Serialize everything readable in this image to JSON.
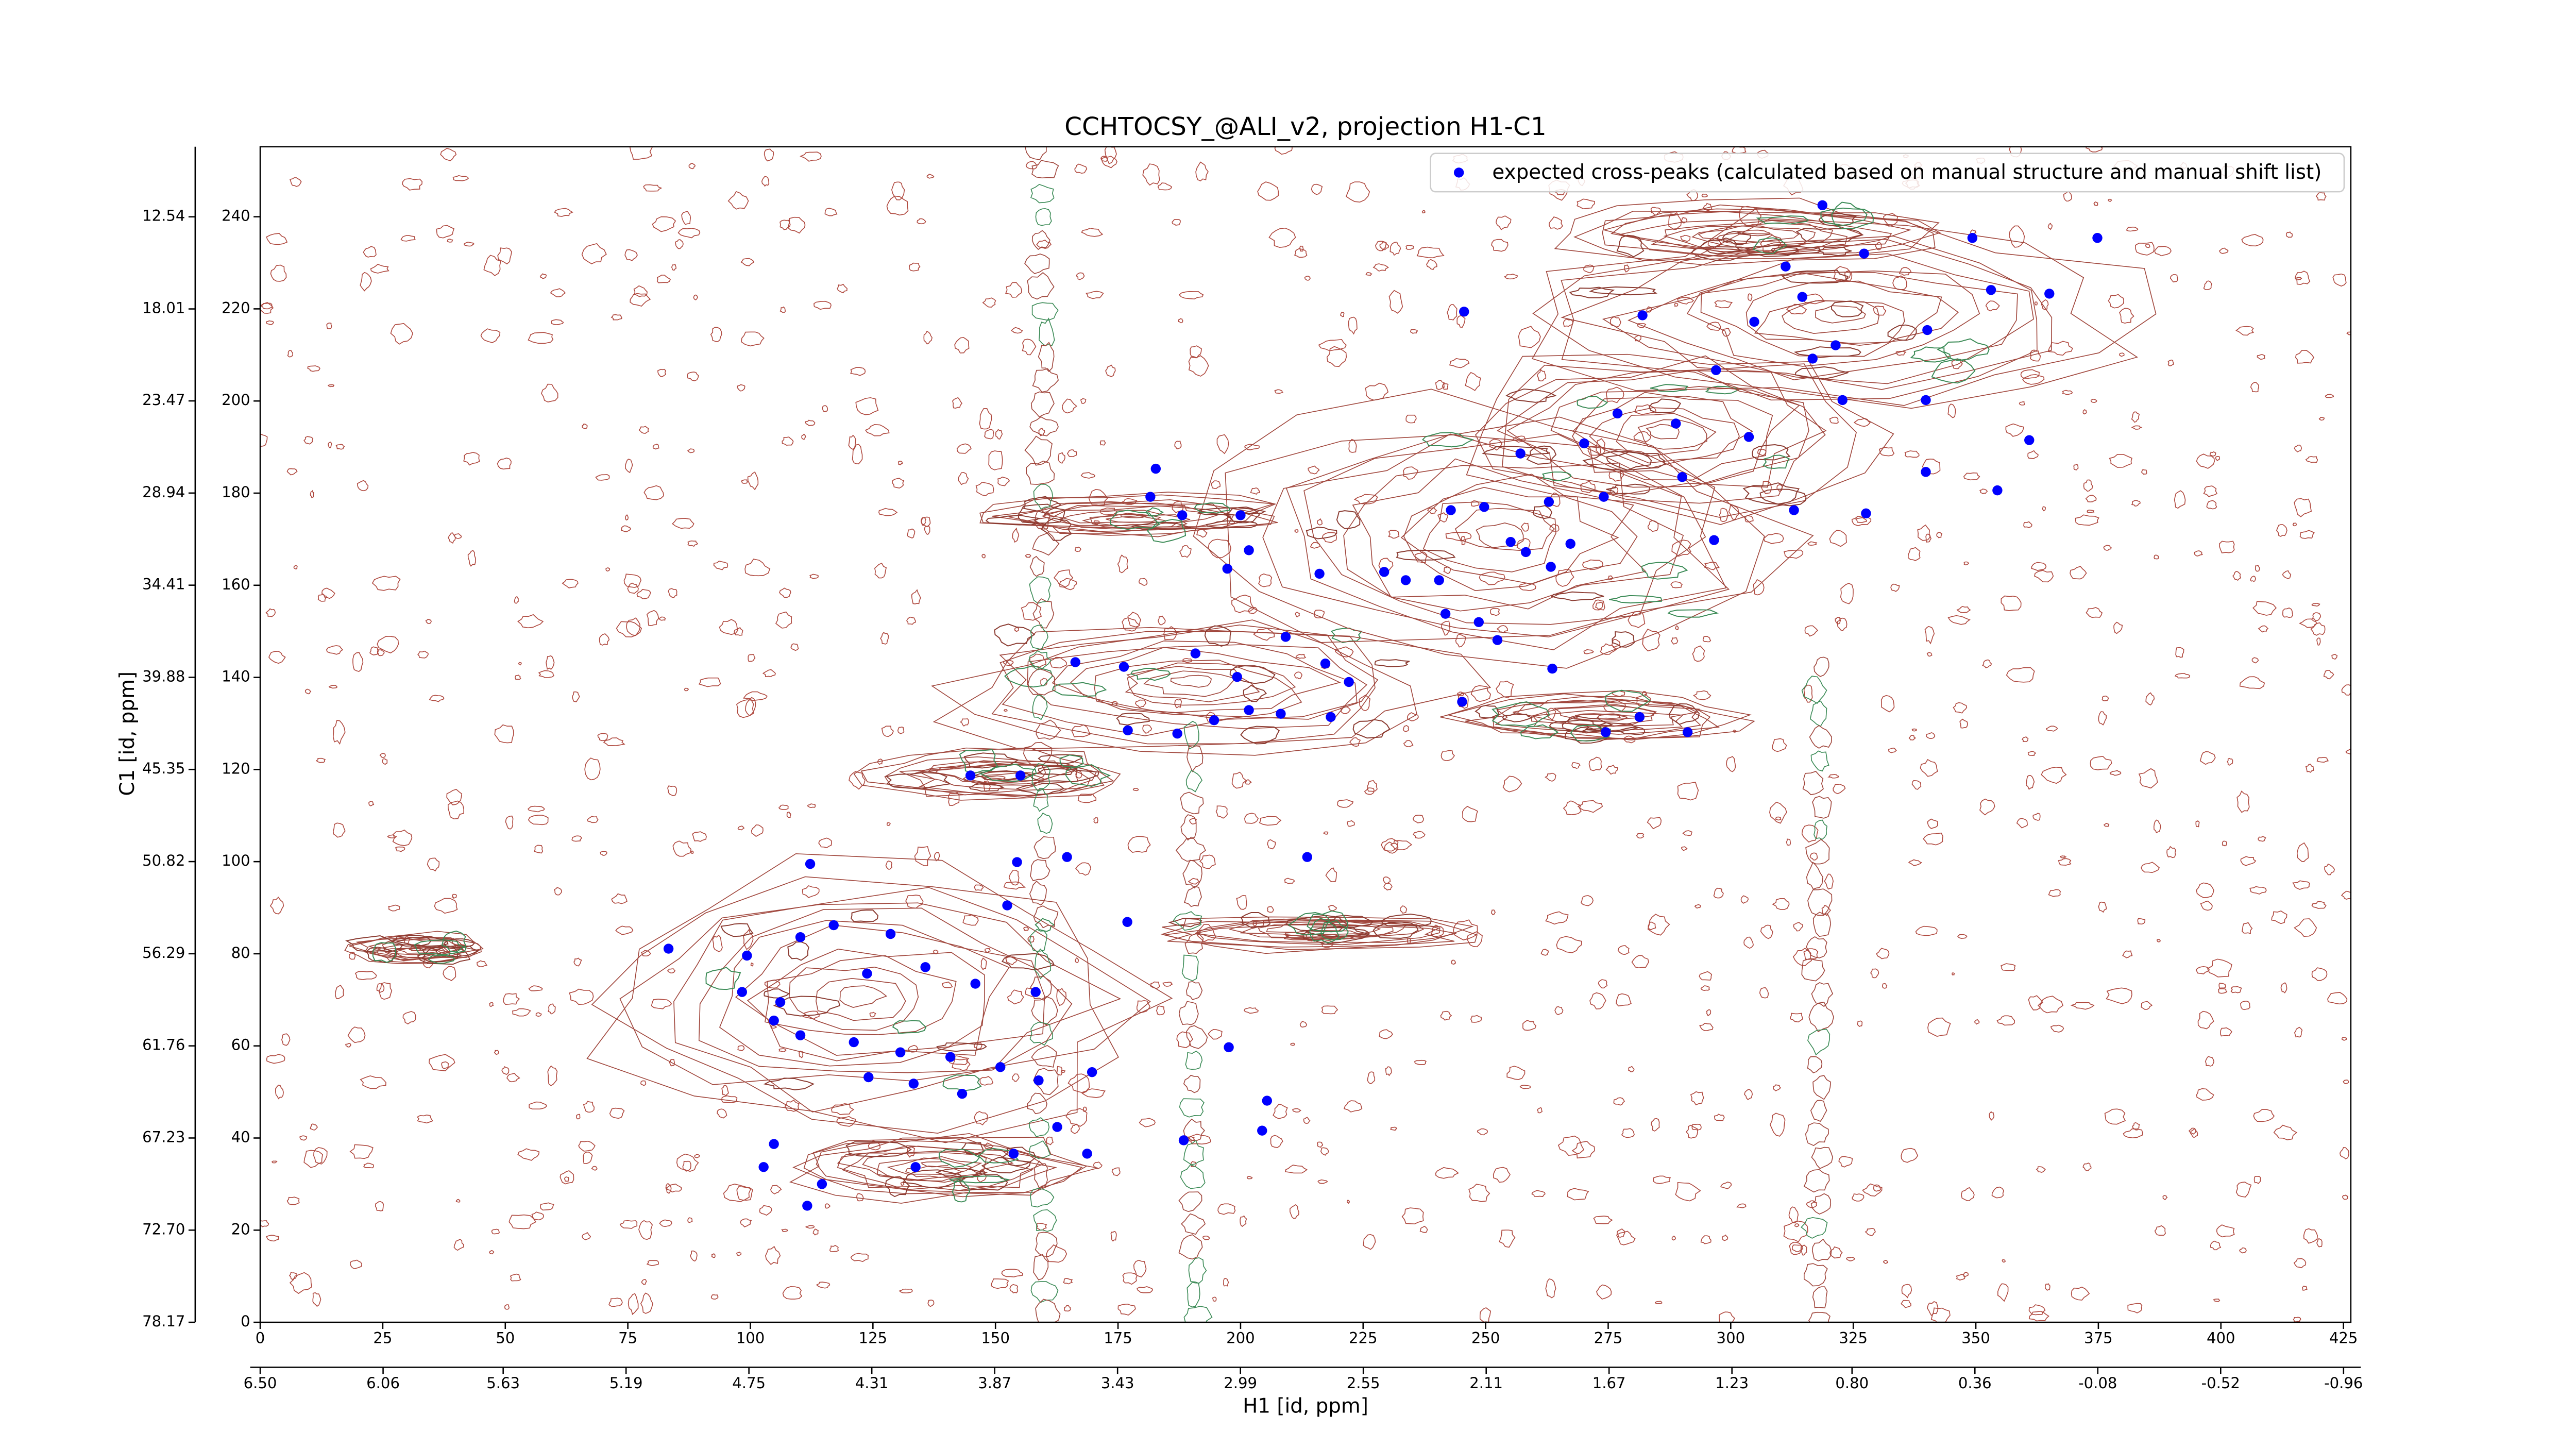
{
  "chart_data": {
    "type": "scatter",
    "title": "CCHTOCSY_@ALI_v2, projection H1-C1",
    "xlabel": "H1 [id, ppm]",
    "ylabel": "C1 [id, ppm]",
    "xlim": [
      0,
      426.5
    ],
    "xticks": [
      0,
      25,
      50,
      75,
      100,
      125,
      150,
      175,
      200,
      225,
      250,
      275,
      300,
      325,
      350,
      375,
      400,
      425
    ],
    "x2lim": [
      6.5,
      -0.986
    ],
    "x2ticks": [
      {
        "value": 6.5,
        "label": "6.50"
      },
      {
        "value": 6.06,
        "label": "6.06"
      },
      {
        "value": 5.63,
        "label": "5.63"
      },
      {
        "value": 5.19,
        "label": "5.19"
      },
      {
        "value": 4.75,
        "label": "4.75"
      },
      {
        "value": 4.31,
        "label": "4.31"
      },
      {
        "value": 3.87,
        "label": "3.87"
      },
      {
        "value": 3.43,
        "label": "3.43"
      },
      {
        "value": 2.99,
        "label": "2.99"
      },
      {
        "value": 2.55,
        "label": "2.55"
      },
      {
        "value": 2.11,
        "label": "2.11"
      },
      {
        "value": 1.67,
        "label": "1.67"
      },
      {
        "value": 1.23,
        "label": "1.23"
      },
      {
        "value": 0.8,
        "label": "0.80"
      },
      {
        "value": 0.36,
        "label": "0.36"
      },
      {
        "value": -0.08,
        "label": "-0.08"
      },
      {
        "value": -0.52,
        "label": "-0.52"
      },
      {
        "value": -0.96,
        "label": "-0.96"
      }
    ],
    "ylim": [
      0,
      255.2
    ],
    "yticks": [
      0,
      20,
      40,
      60,
      80,
      100,
      120,
      140,
      160,
      180,
      200,
      220,
      240
    ],
    "y2lim": [
      78.17,
      8.38
    ],
    "y2ticks": [
      {
        "value": 78.17,
        "label": "78.17"
      },
      {
        "value": 72.7,
        "label": "72.70"
      },
      {
        "value": 67.23,
        "label": "67.23"
      },
      {
        "value": 61.76,
        "label": "61.76"
      },
      {
        "value": 56.29,
        "label": "56.29"
      },
      {
        "value": 50.82,
        "label": "50.82"
      },
      {
        "value": 45.35,
        "label": "45.35"
      },
      {
        "value": 39.88,
        "label": "39.88"
      },
      {
        "value": 34.41,
        "label": "34.41"
      },
      {
        "value": 28.94,
        "label": "28.94"
      },
      {
        "value": 23.47,
        "label": "23.47"
      },
      {
        "value": 18.01,
        "label": "18.01"
      },
      {
        "value": 12.54,
        "label": "12.54"
      }
    ],
    "legend": "upper right",
    "series": [
      {
        "name": "expected cross-peaks (calculated based on manual structure and manual shift list)",
        "color": "#0000ff",
        "x": [
          318.7,
          374.8,
          349.3,
          311.2,
          327.2,
          353.1,
          365.0,
          245.6,
          282.0,
          304.8,
          314.6,
          321.4,
          340.1,
          297.0,
          316.7,
          322.8,
          339.8,
          360.9,
          354.4,
          339.8,
          303.7,
          288.8,
          276.9,
          270.1,
          257.1,
          274.1,
          262.9,
          249.7,
          255.1,
          242.9,
          240.5,
          233.7,
          229.3,
          258.2,
          263.3,
          267.3,
          290.1,
          312.9,
          327.6,
          296.6,
          241.8,
          248.6,
          252.4,
          263.6,
          216.1,
          197.3,
          181.6,
          182.7,
          188.1,
          200.0,
          201.7,
          166.3,
          176.2,
          190.8,
          199.3,
          209.2,
          217.3,
          222.1,
          201.7,
          194.6,
          177.0,
          187.1,
          208.2,
          218.4,
          245.2,
          274.5,
          291.2,
          281.4,
          144.9,
          155.1,
          154.4,
          164.6,
          213.6,
          112.2,
          152.4,
          176.9,
          83.3,
          99.3,
          110.2,
          117.0,
          128.6,
          98.3,
          106.1,
          123.8,
          135.7,
          145.9,
          158.2,
          104.8,
          110.2,
          121.1,
          130.6,
          140.8,
          151.0,
          124.1,
          133.3,
          143.2,
          158.8,
          169.7,
          197.6,
          162.6,
          104.8,
          102.7,
          114.6,
          111.6,
          133.7,
          153.7,
          168.7,
          188.4,
          205.4,
          204.4
        ],
        "y": [
          242.5,
          235.4,
          235.4,
          229.2,
          232.0,
          224.1,
          223.3,
          219.4,
          218.6,
          217.2,
          222.6,
          212.1,
          215.4,
          206.7,
          209.2,
          200.2,
          200.2,
          191.5,
          180.6,
          184.6,
          192.2,
          195.1,
          197.3,
          190.8,
          188.6,
          179.2,
          178.1,
          177.0,
          169.4,
          176.3,
          161.1,
          161.1,
          162.9,
          167.2,
          164.0,
          169.0,
          183.5,
          176.3,
          175.6,
          169.8,
          153.8,
          152.0,
          148.1,
          141.9,
          162.5,
          163.6,
          179.2,
          185.3,
          175.2,
          175.2,
          167.6,
          143.3,
          142.3,
          145.2,
          140.1,
          148.8,
          143.0,
          139.0,
          132.9,
          130.7,
          128.5,
          127.8,
          132.1,
          131.4,
          134.7,
          128.1,
          128.1,
          131.4,
          118.7,
          118.7,
          99.9,
          101.0,
          101.0,
          99.5,
          90.5,
          86.9,
          81.1,
          79.6,
          83.6,
          86.2,
          84.3,
          71.7,
          69.5,
          75.7,
          77.1,
          73.5,
          71.7,
          65.5,
          62.3,
          60.8,
          58.6,
          57.6,
          55.4,
          53.2,
          51.8,
          49.6,
          52.5,
          54.3,
          59.7,
          42.4,
          38.7,
          33.7,
          30.0,
          25.3,
          33.7,
          36.6,
          36.6,
          39.5,
          48.1,
          41.6
        ]
      }
    ]
  }
}
